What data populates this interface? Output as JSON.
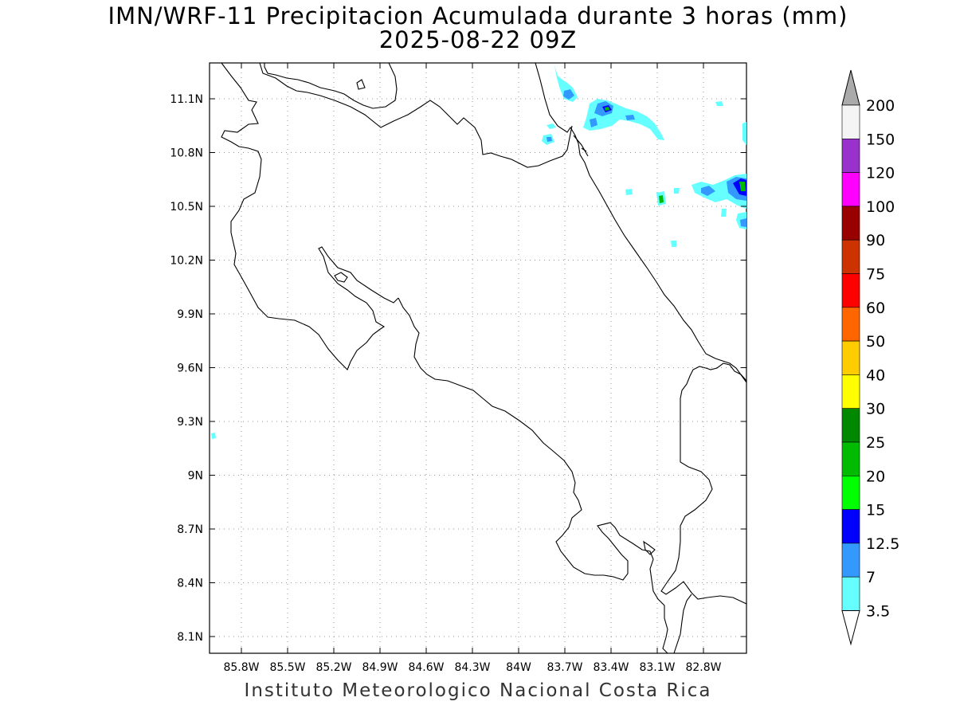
{
  "title": {
    "line1": "IMN/WRF-11 Precipitacion Acumulada durante 3 horas (mm)",
    "line2": "2025-08-22 09Z"
  },
  "footer": "Instituto Meteorologico Nacional Costa Rica",
  "axes": {
    "x_ticks": [
      "85.8W",
      "85.5W",
      "85.2W",
      "84.9W",
      "84.6W",
      "84.3W",
      "84W",
      "83.7W",
      "83.4W",
      "83.1W",
      "82.8W"
    ],
    "y_ticks": [
      "11.1N",
      "10.8N",
      "10.5N",
      "10.2N",
      "9.9N",
      "9.6N",
      "9.3N",
      "9N",
      "8.7N",
      "8.4N",
      "8.1N"
    ]
  },
  "colorbar": {
    "labels": [
      "200",
      "150",
      "120",
      "100",
      "90",
      "75",
      "60",
      "50",
      "40",
      "30",
      "25",
      "20",
      "15",
      "12.5",
      "7",
      "3.5"
    ],
    "colors": [
      "#f4f4f4",
      "#9932cc",
      "#ff00ff",
      "#990000",
      "#cc3300",
      "#ff0000",
      "#ff6600",
      "#ffcc00",
      "#ffff00",
      "#008800",
      "#00bb00",
      "#00ff00",
      "#0000ff",
      "#3399ff",
      "#66ffff"
    ],
    "top_arrow_color": "#aaaaaa",
    "bottom_arrow_color": "#ffffff"
  }
}
